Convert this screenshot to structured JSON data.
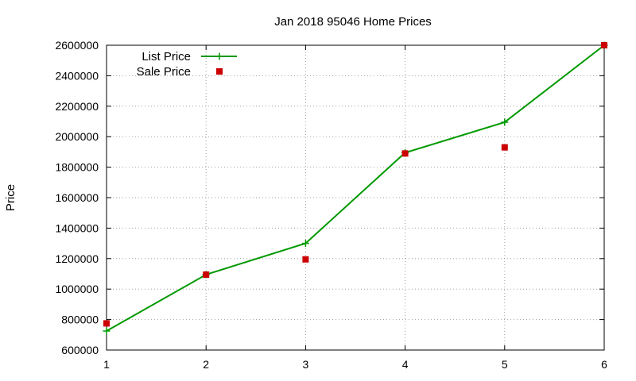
{
  "chart_data": {
    "type": "line",
    "title": "Jan 2018 95046 Home Prices",
    "xlabel": "",
    "ylabel": "Price",
    "xlim": [
      1,
      6
    ],
    "ylim": [
      600000,
      2600000
    ],
    "x_ticks": [
      1,
      2,
      3,
      4,
      5,
      6
    ],
    "y_ticks": [
      600000,
      800000,
      1000000,
      1200000,
      1400000,
      1600000,
      1800000,
      2000000,
      2200000,
      2400000,
      2600000
    ],
    "grid": true,
    "legend_position": "top-left",
    "series": [
      {
        "name": "List Price",
        "style": "line-with-plus-markers",
        "color": "#009900",
        "x": [
          1,
          2,
          3,
          4,
          5,
          6
        ],
        "values": [
          725000,
          1095000,
          1300000,
          1895000,
          2095000,
          2600000
        ]
      },
      {
        "name": "Sale Price",
        "style": "square-points",
        "color": "#cc0000",
        "x": [
          1,
          2,
          3,
          4,
          5,
          6
        ],
        "values": [
          775000,
          1095000,
          1195000,
          1890000,
          1930000,
          2600000
        ]
      }
    ]
  }
}
